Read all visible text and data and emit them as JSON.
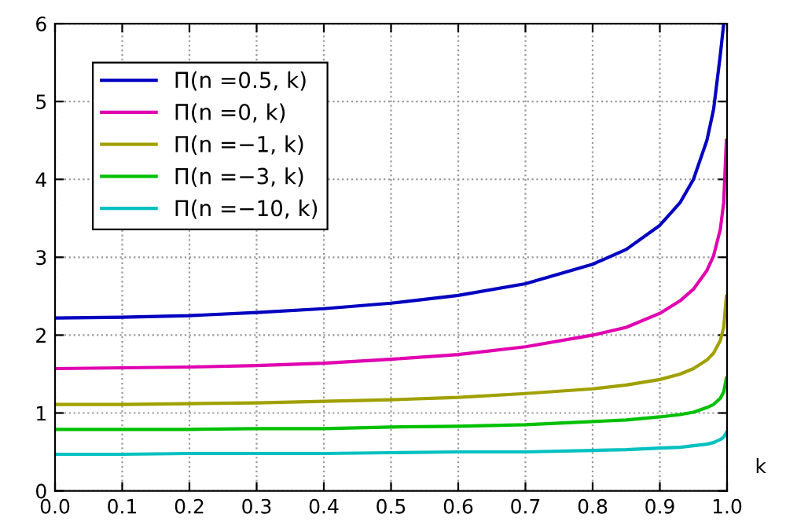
{
  "chart_data": {
    "type": "line",
    "xlabel": "k",
    "x": [
      0,
      0.1,
      0.2,
      0.3,
      0.4,
      0.5,
      0.6,
      0.7,
      0.8,
      0.85,
      0.9,
      0.93,
      0.95,
      0.97,
      0.98,
      0.99,
      0.995
    ],
    "series": [
      {
        "name": "Π(n =0.5, k)",
        "color": "#0000c0",
        "values": [
          2.22,
          2.23,
          2.25,
          2.29,
          2.34,
          2.41,
          2.51,
          2.66,
          2.91,
          3.1,
          3.41,
          3.7,
          4.0,
          4.5,
          4.9,
          5.6,
          6.0
        ]
      },
      {
        "name": "Π(n =0, k)",
        "color": "#e000b0",
        "x": [
          0,
          0.1,
          0.2,
          0.3,
          0.4,
          0.5,
          0.6,
          0.7,
          0.8,
          0.85,
          0.9,
          0.93,
          0.95,
          0.97,
          0.98,
          0.99,
          0.995,
          0.999
        ],
        "values": [
          1.57,
          1.58,
          1.59,
          1.61,
          1.64,
          1.69,
          1.75,
          1.85,
          2.0,
          2.1,
          2.28,
          2.44,
          2.59,
          2.83,
          3.02,
          3.36,
          3.7,
          4.5
        ]
      },
      {
        "name": "Π(n =−1, k)",
        "color": "#a0a000",
        "x": [
          0,
          0.1,
          0.2,
          0.3,
          0.4,
          0.5,
          0.6,
          0.7,
          0.8,
          0.85,
          0.9,
          0.93,
          0.95,
          0.97,
          0.98,
          0.99,
          0.995,
          0.999
        ],
        "values": [
          1.11,
          1.11,
          1.12,
          1.13,
          1.15,
          1.17,
          1.2,
          1.25,
          1.31,
          1.36,
          1.43,
          1.5,
          1.57,
          1.68,
          1.77,
          1.93,
          2.1,
          2.5
        ]
      },
      {
        "name": "Π(n =−3, k)",
        "color": "#00c000",
        "x": [
          0,
          0.1,
          0.2,
          0.3,
          0.4,
          0.5,
          0.6,
          0.7,
          0.8,
          0.85,
          0.9,
          0.93,
          0.95,
          0.97,
          0.98,
          0.99,
          0.995,
          0.999
        ],
        "values": [
          0.79,
          0.79,
          0.79,
          0.8,
          0.8,
          0.82,
          0.83,
          0.85,
          0.89,
          0.91,
          0.95,
          0.98,
          1.01,
          1.07,
          1.11,
          1.19,
          1.27,
          1.45
        ]
      },
      {
        "name": "Π(n =−10, k)",
        "color": "#00c0c0",
        "x": [
          0,
          0.1,
          0.2,
          0.3,
          0.4,
          0.5,
          0.6,
          0.7,
          0.8,
          0.85,
          0.9,
          0.93,
          0.95,
          0.97,
          0.98,
          0.99,
          0.995,
          0.999
        ],
        "values": [
          0.47,
          0.47,
          0.48,
          0.48,
          0.48,
          0.49,
          0.5,
          0.5,
          0.52,
          0.53,
          0.55,
          0.56,
          0.58,
          0.6,
          0.62,
          0.66,
          0.69,
          0.75
        ]
      }
    ],
    "xlim": [
      0,
      1
    ],
    "ylim": [
      0,
      6
    ],
    "xticks": [
      {
        "value": 0,
        "label": "0.0"
      },
      0.1,
      0.2,
      0.3,
      0.4,
      0.5,
      0.6,
      0.7,
      0.8,
      0.9,
      {
        "value": 1,
        "label": "1.0"
      }
    ],
    "yticks": [
      0,
      1,
      2,
      3,
      4,
      5,
      6
    ],
    "grid": true,
    "legend": "top left",
    "marker": "none",
    "line_style": "solid"
  }
}
